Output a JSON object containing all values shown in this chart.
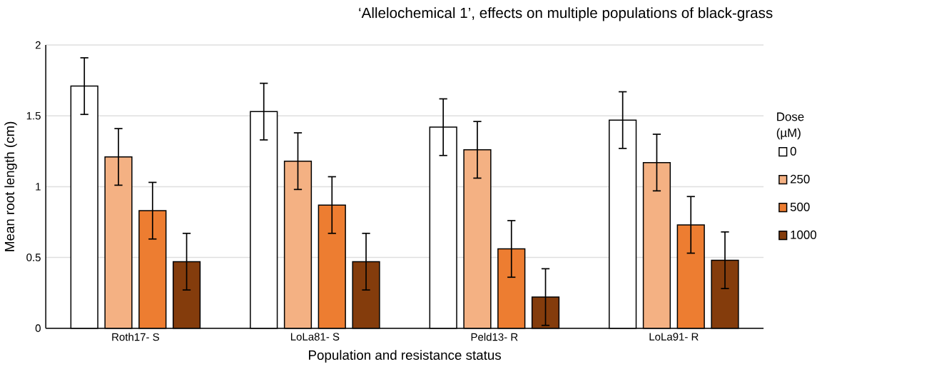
{
  "chart_data": {
    "type": "bar",
    "title": "‘Allelochemical 1’, effects on multiple populations of black-grass",
    "xlabel": "Population and resistance status",
    "ylabel": "Mean root length (cm)",
    "legend_title": "Dose (µM)",
    "categories": [
      "Roth17- S",
      "LoLa81- S",
      "Peld13- R",
      "LoLa91- R"
    ],
    "series": [
      {
        "name": "0",
        "color": "#ffffff",
        "values": [
          1.71,
          1.53,
          1.42,
          1.47
        ],
        "errors": [
          0.2,
          0.2,
          0.2,
          0.2
        ]
      },
      {
        "name": "250",
        "color": "#f4b183",
        "values": [
          1.21,
          1.18,
          1.26,
          1.17
        ],
        "errors": [
          0.2,
          0.2,
          0.2,
          0.2
        ]
      },
      {
        "name": "500",
        "color": "#ed7d31",
        "values": [
          0.83,
          0.87,
          0.56,
          0.73
        ],
        "errors": [
          0.2,
          0.2,
          0.2,
          0.2
        ]
      },
      {
        "name": "1000",
        "color": "#843c0c",
        "values": [
          0.47,
          0.47,
          0.22,
          0.48
        ],
        "errors": [
          0.2,
          0.2,
          0.2,
          0.2
        ]
      }
    ],
    "ylim": [
      0,
      2
    ],
    "yticks": [
      0,
      0.5,
      1,
      1.5,
      2
    ],
    "grid": "y",
    "legend": "right"
  }
}
